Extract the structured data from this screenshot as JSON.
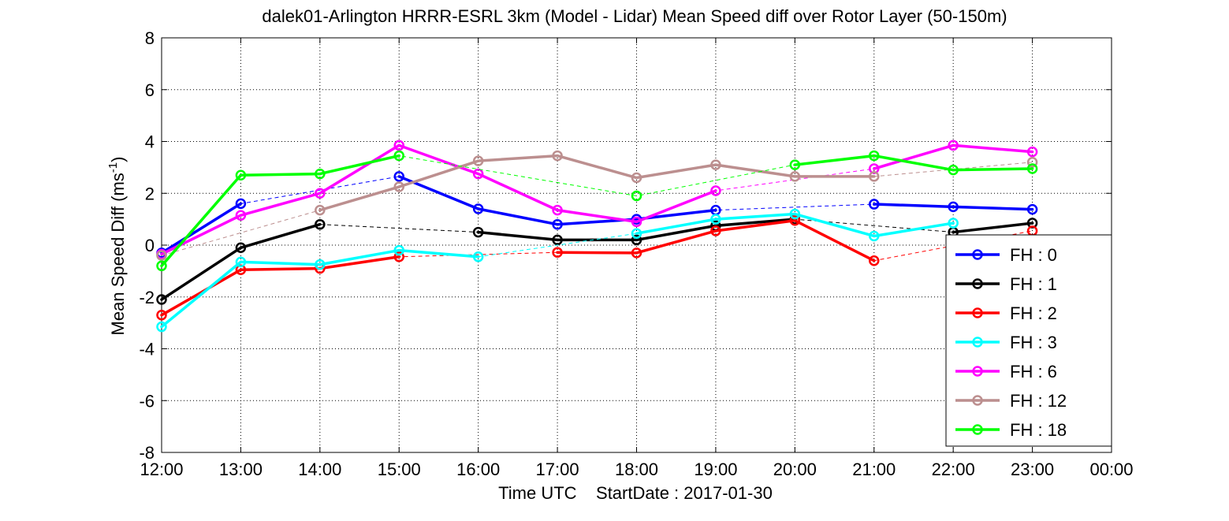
{
  "chart_data": {
    "type": "line",
    "title": "dalek01-Arlington HRRR-ESRL 3km (Model - Lidar) Mean Speed diff over Rotor Layer (50-150m)",
    "xlabel": "Time UTC    StartDate : 2017-01-30",
    "ylabel": "Mean Speed Diff (ms",
    "ylabel_sup": "-1",
    "ylabel_close": ")",
    "x_ticks": [
      "12:00",
      "13:00",
      "14:00",
      "15:00",
      "16:00",
      "17:00",
      "18:00",
      "19:00",
      "20:00",
      "21:00",
      "22:00",
      "23:00",
      "00:00"
    ],
    "xlim": [
      "12:00",
      "00:00"
    ],
    "ylim": [
      -8,
      8
    ],
    "y_ticks": [
      -8,
      -6,
      -4,
      -2,
      0,
      2,
      4,
      6,
      8
    ],
    "grid": true,
    "legend_position": "bottom-right",
    "series": [
      {
        "name": "FH : 0",
        "color": "#0000ff",
        "values": [
          -0.3,
          1.6,
          null,
          2.65,
          1.4,
          0.8,
          1.0,
          1.35,
          null,
          1.58,
          1.48,
          1.38
        ]
      },
      {
        "name": "FH : 1",
        "color": "#000000",
        "values": [
          -2.1,
          -0.1,
          0.8,
          null,
          0.5,
          0.2,
          0.2,
          0.75,
          1.0,
          null,
          0.5,
          0.85
        ]
      },
      {
        "name": "FH : 2",
        "color": "#ff0000",
        "values": [
          -2.7,
          -0.95,
          -0.9,
          -0.45,
          null,
          -0.28,
          -0.3,
          0.55,
          0.95,
          -0.6,
          null,
          0.55
        ]
      },
      {
        "name": "FH : 3",
        "color": "#00ffff",
        "values": [
          -3.15,
          -0.65,
          -0.75,
          -0.2,
          -0.45,
          null,
          0.45,
          1.0,
          1.2,
          0.35,
          0.85,
          null
        ]
      },
      {
        "name": "FH : 6",
        "color": "#ff00ff",
        "values": [
          -0.35,
          1.15,
          2.0,
          3.85,
          2.75,
          1.35,
          0.9,
          2.1,
          null,
          2.95,
          3.85,
          3.6
        ]
      },
      {
        "name": "FH : 12",
        "color": "#bc8f8f",
        "values": [
          -0.4,
          null,
          1.35,
          2.25,
          3.25,
          3.45,
          2.6,
          3.1,
          2.65,
          2.65,
          null,
          3.2
        ]
      },
      {
        "name": "FH : 18",
        "color": "#00ff00",
        "values": [
          -0.8,
          2.7,
          2.75,
          3.45,
          null,
          null,
          1.9,
          null,
          3.1,
          3.45,
          2.9,
          2.95
        ]
      }
    ]
  }
}
